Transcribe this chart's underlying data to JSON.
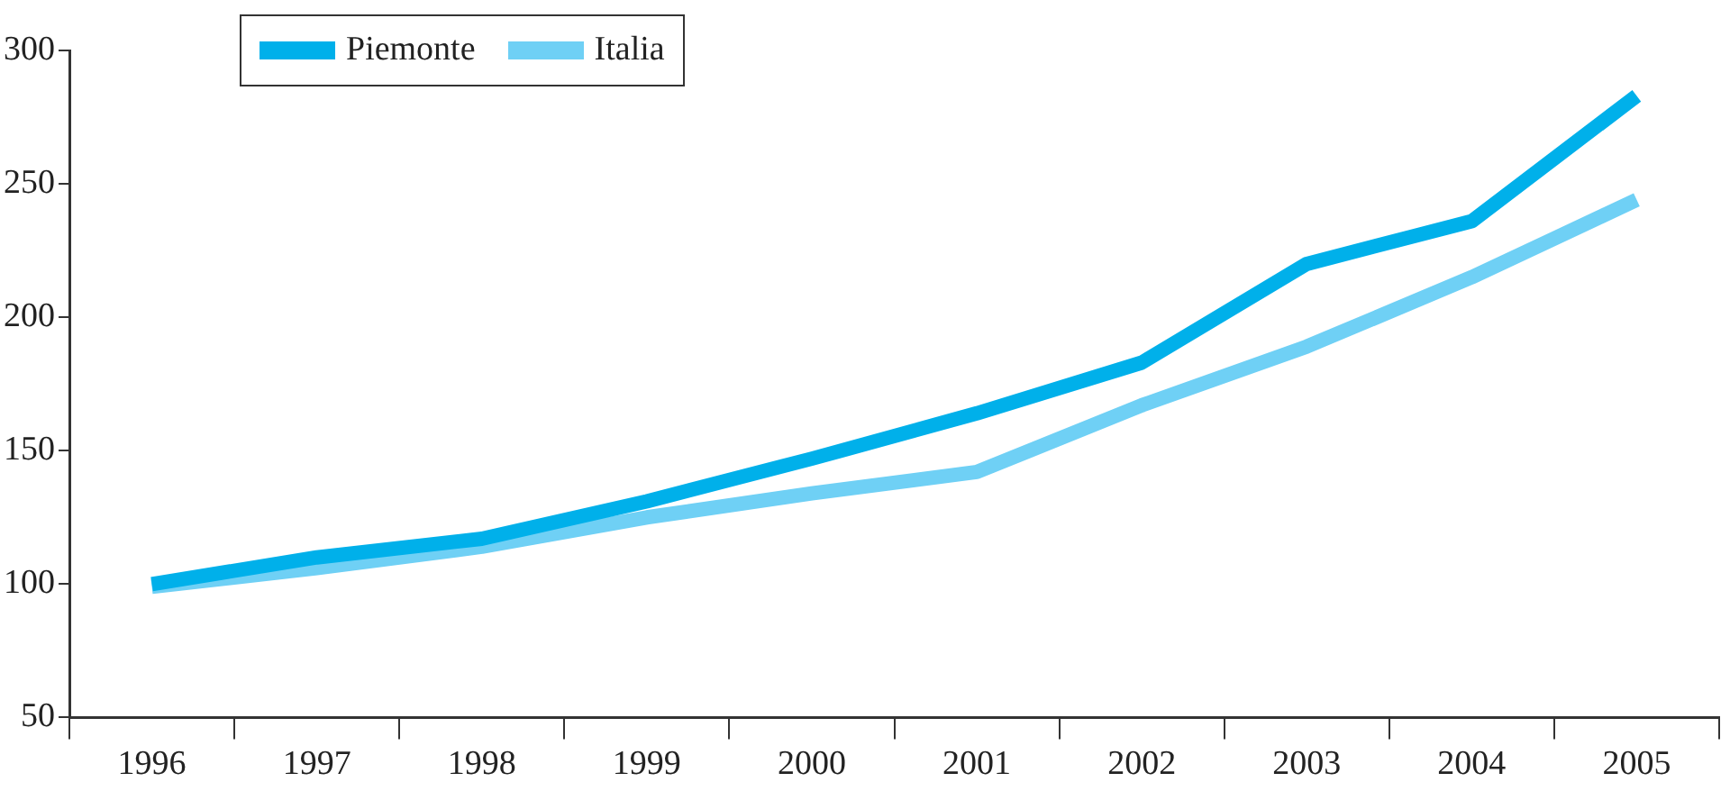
{
  "chart_data": {
    "type": "line",
    "categories": [
      "1996",
      "1997",
      "1998",
      "1999",
      "2000",
      "2001",
      "2002",
      "2003",
      "2004",
      "2005"
    ],
    "series": [
      {
        "name": "Piemonte",
        "color": "#00b0ea",
        "values": [
          100,
          110,
          117,
          131,
          147,
          164,
          183,
          220,
          236,
          283
        ]
      },
      {
        "name": "Italia",
        "color": "#6fd0f5",
        "values": [
          99,
          106,
          114,
          125,
          134,
          142,
          167,
          189,
          215,
          244
        ]
      }
    ],
    "ylim": [
      50,
      300
    ],
    "yticks": [
      50,
      100,
      150,
      200,
      250,
      300
    ],
    "grid": false,
    "legend": "top left",
    "marker": "none",
    "line_style": "solid"
  }
}
